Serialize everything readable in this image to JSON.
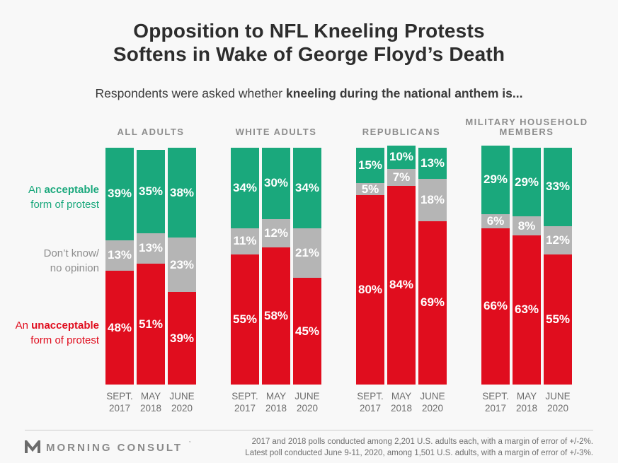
{
  "title": {
    "line1": "Opposition to NFL Kneeling Protests",
    "line2": "Softens in Wake of George Floyd’s Death"
  },
  "subtitle": {
    "prefix": "Respondents were asked whether ",
    "bold": "kneeling during the national anthem is..."
  },
  "legend": {
    "acceptable": {
      "line1_prefix": "An ",
      "line1_bold": "acceptable",
      "line2": "form of protest",
      "color": "#1aa87c"
    },
    "dont_know": {
      "line1": "Don’t know/",
      "line2": "no opinion",
      "color": "#8d8d8d"
    },
    "unacceptable": {
      "line1_prefix": "An ",
      "line1_bold": "unacceptable",
      "line2": "form of protest",
      "color": "#e00d1e"
    }
  },
  "chart_data": {
    "type": "bar",
    "stacked": true,
    "unit": "%",
    "ylim": [
      0,
      100
    ],
    "grid": false,
    "categories": [
      [
        "SEPT.",
        "2017"
      ],
      [
        "MAY",
        "2018"
      ],
      [
        "JUNE",
        "2020"
      ]
    ],
    "series": [
      {
        "key": "unacceptable",
        "name": "An unacceptable form of protest",
        "color": "#e00d1e"
      },
      {
        "key": "dont_know",
        "name": "Don't know/no opinion",
        "color": "#b5b5b5"
      },
      {
        "key": "acceptable",
        "name": "An acceptable form of protest",
        "color": "#1aa87c"
      }
    ],
    "groups": [
      {
        "label_lines": [
          "ALL ADULTS"
        ],
        "values": {
          "acceptable": [
            39,
            35,
            38
          ],
          "dont_know": [
            13,
            13,
            23
          ],
          "unacceptable": [
            48,
            51,
            39
          ]
        }
      },
      {
        "label_lines": [
          "WHITE ADULTS"
        ],
        "values": {
          "acceptable": [
            34,
            30,
            34
          ],
          "dont_know": [
            11,
            12,
            21
          ],
          "unacceptable": [
            55,
            58,
            45
          ]
        }
      },
      {
        "label_lines": [
          "REPUBLICANS"
        ],
        "values": {
          "acceptable": [
            15,
            10,
            13
          ],
          "dont_know": [
            5,
            7,
            18
          ],
          "unacceptable": [
            80,
            84,
            69
          ]
        }
      },
      {
        "label_lines": [
          "MILITARY HOUSEHOLD",
          "MEMBERS"
        ],
        "values": {
          "acceptable": [
            29,
            29,
            33
          ],
          "dont_know": [
            6,
            8,
            12
          ],
          "unacceptable": [
            66,
            63,
            55
          ]
        }
      }
    ]
  },
  "footer": {
    "logo_text": "MORNING CONSULT",
    "logo_mark": "’",
    "note_line1": "2017 and 2018 polls conducted among 2,201 U.S. adults each, with a margin of error of +/-2%.",
    "note_line2": "Latest poll conducted June 9-11, 2020, among 1,501 U.S. adults, with a margin of error of +/-3%."
  }
}
